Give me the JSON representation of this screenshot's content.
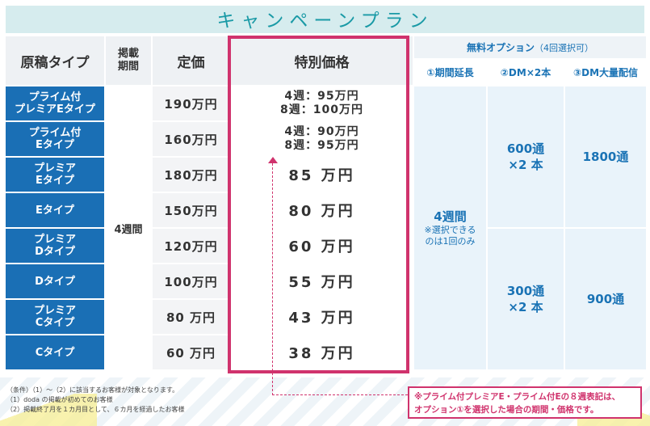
{
  "title": "キャンペーンプラン",
  "headers": {
    "type": "原稿タイプ",
    "period_line1": "掲載",
    "period_line2": "期間",
    "list_price": "定価",
    "special_price": "特別価格",
    "options_main": "無料オプション",
    "options_sub": "（4回選択可）",
    "opt1": "①期間延長",
    "opt2": "②DM×2本",
    "opt3": "③DM大量配信"
  },
  "period_value": "4週間",
  "rows": [
    {
      "type_line1": "プライム付",
      "type_line2": "プレミアEタイプ",
      "price": "190万円",
      "special_line1": "4週：95万円",
      "special_line2": "8週：100万円"
    },
    {
      "type_line1": "プライム付",
      "type_line2": "Eタイプ",
      "price": "160万円",
      "special_line1": "4週：90万円",
      "special_line2": "8週：95万円"
    },
    {
      "type_line1": "プレミア",
      "type_line2": "Eタイプ",
      "price": "180万円",
      "special": "85 万円"
    },
    {
      "type_line1": "Eタイプ",
      "type_line2": "",
      "price": "150万円",
      "special": "80 万円"
    },
    {
      "type_line1": "プレミア",
      "type_line2": "Dタイプ",
      "price": "120万円",
      "special": "60 万円"
    },
    {
      "type_line1": "Dタイプ",
      "type_line2": "",
      "price": "100万円",
      "special": "55 万円"
    },
    {
      "type_line1": "プレミア",
      "type_line2": "Cタイプ",
      "price": "80 万円",
      "special": "43 万円"
    },
    {
      "type_line1": "Cタイプ",
      "type_line2": "",
      "price": "60 万円",
      "special": "38 万円"
    }
  ],
  "option1": {
    "value": "4週間",
    "note_line1": "※選択できる",
    "note_line2": "のは1回のみ"
  },
  "option2": {
    "upper_line1": "600通",
    "upper_line2": "×2 本",
    "lower_line1": "300通",
    "lower_line2": "×2 本"
  },
  "option3": {
    "upper": "1800通",
    "lower": "900通"
  },
  "conditions": [
    "（条件）（1）～（2）に該当するお客様が対象となります。",
    "（1）doda の掲載が初めてのお客様",
    "（2）掲載終了月を１カ月目として、６カ月を経過したお客様"
  ],
  "footnote_line1": "※プライム付プレミアE・プライム付Eの８週表記は、",
  "footnote_line2": "オプション①を選択した場合の期間・価格です。",
  "colors": {
    "type_bg": "#1a6fb5",
    "highlight": "#d0336d",
    "title_bg": "#d6ecee",
    "title_text": "#1a9aa6",
    "option_text": "#1a73b5"
  }
}
